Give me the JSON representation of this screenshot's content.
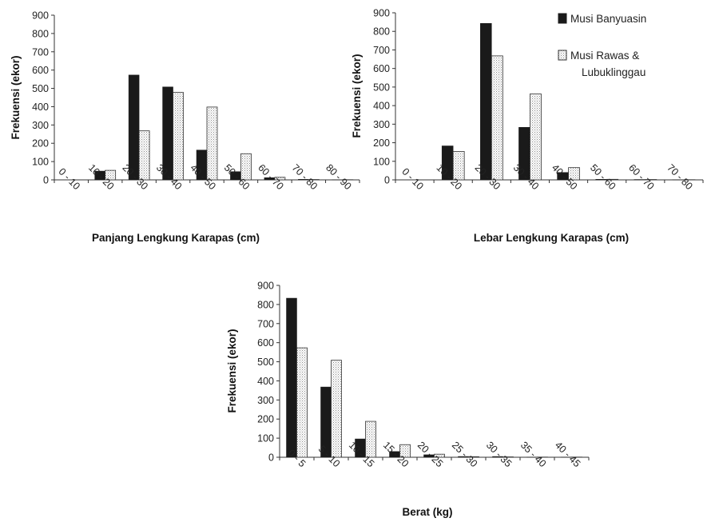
{
  "colors": {
    "series1": "#1a1a1a",
    "series2_bg": "#ffffff",
    "series2_dots": "#8a8a8a",
    "axis": "#333333"
  },
  "legend": {
    "placement": "top-right",
    "items": [
      {
        "label": "Musi Banyuasin"
      },
      {
        "label_line1": "Musi Rawas &",
        "label_line2": "Lubuklinggau"
      }
    ]
  },
  "chart_data": [
    {
      "type": "bar",
      "xlabel": "Panjang Lengkung Karapas (cm)",
      "ylabel": "Frekuensi (ekor)",
      "ylim": [
        0,
        900
      ],
      "yticks": [
        0,
        100,
        200,
        300,
        400,
        500,
        600,
        700,
        800,
        900
      ],
      "categories": [
        "0 - 10",
        "10 - 20",
        "20 - 30",
        "30 - 40",
        "40 - 50",
        "50 - 60",
        "60 - 70",
        "70 - 80",
        "80 - 90"
      ],
      "series": [
        {
          "name": "Musi Banyuasin",
          "values": [
            0,
            48,
            573,
            508,
            163,
            45,
            12,
            3,
            1
          ]
        },
        {
          "name": "Musi Rawas & Lubuklinggau",
          "values": [
            0,
            52,
            268,
            478,
            398,
            143,
            14,
            2,
            1
          ]
        }
      ]
    },
    {
      "type": "bar",
      "xlabel": "Lebar Lengkung Karapas (cm)",
      "ylabel": "Frekuensi (ekor)",
      "ylim": [
        0,
        900
      ],
      "yticks": [
        0,
        100,
        200,
        300,
        400,
        500,
        600,
        700,
        800,
        900
      ],
      "categories": [
        "0 - 10",
        "10 - 20",
        "20 - 30",
        "30 - 40",
        "40 - 50",
        "50 - 60",
        "60 - 70",
        "70 - 80"
      ],
      "series": [
        {
          "name": "Musi Banyuasin",
          "values": [
            0,
            183,
            843,
            283,
            40,
            3,
            2,
            1
          ]
        },
        {
          "name": "Musi Rawas & Lubuklinggau",
          "values": [
            0,
            153,
            668,
            463,
            66,
            3,
            2,
            1
          ]
        }
      ]
    },
    {
      "type": "bar",
      "xlabel": "Berat (kg)",
      "ylabel": "Frekuensi (ekor)",
      "ylim": [
        0,
        900
      ],
      "yticks": [
        0,
        100,
        200,
        300,
        400,
        500,
        600,
        700,
        800,
        900
      ],
      "categories": [
        "0 - 5",
        "5 - 10",
        "10 - 15",
        "15 - 20",
        "20 - 25",
        "25 - 30",
        "30 - 35",
        "35 - 40",
        "40 - 45"
      ],
      "series": [
        {
          "name": "Musi Banyuasin",
          "values": [
            833,
            368,
            96,
            30,
            13,
            4,
            4,
            1,
            1
          ]
        },
        {
          "name": "Musi Rawas & Lubuklinggau",
          "values": [
            573,
            508,
            188,
            66,
            16,
            3,
            2,
            1,
            1
          ]
        }
      ]
    }
  ]
}
